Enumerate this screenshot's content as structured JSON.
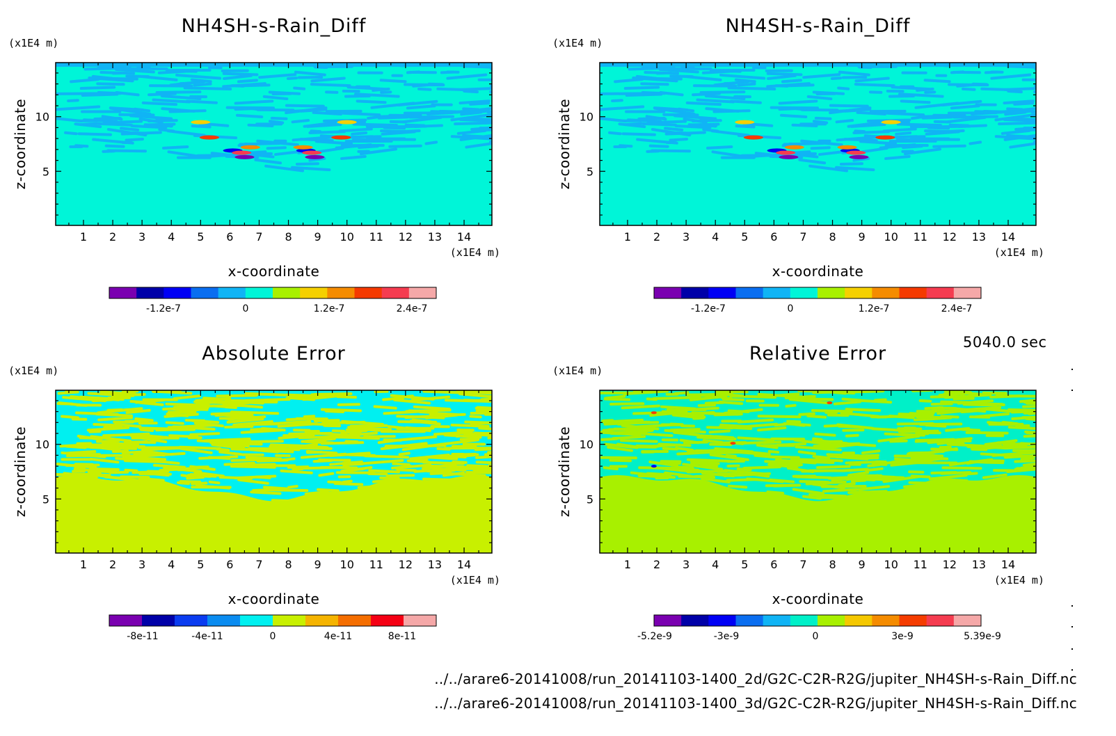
{
  "time_label": "5040.0 sec",
  "footer_lines": [
    "../../arare6-20141008/run_20141103-1400_2d/G2C-C2R-R2G/jupiter_NH4SH-s-Rain_Diff.nc",
    "../../arare6-20141008/run_20141103-1400_3d/G2C-C2R-R2G/jupiter_NH4SH-s-Rain_Diff.nc"
  ],
  "chart_data": [
    {
      "type": "heatmap",
      "title": "NH4SH-s-Rain_Diff",
      "xlabel": "x-coordinate",
      "ylabel": "z-coordinate",
      "x_unit": "(x1E4 m)",
      "y_unit": "(x1E4 m)",
      "xlim": [
        0.05,
        14.95
      ],
      "ylim": [
        0.05,
        14.95
      ],
      "x_ticks": [
        "1",
        "2",
        "3",
        "4",
        "5",
        "6",
        "7",
        "8",
        "9",
        "10",
        "11",
        "12",
        "13",
        "14"
      ],
      "y_ticks": [
        "5",
        "10"
      ],
      "colorbar": {
        "levels": 12,
        "tick_labels": [
          "-1.2e-7",
          "0",
          "1.2e-7",
          "2.4e-7"
        ],
        "colors": [
          "#7a00b0",
          "#0000a8",
          "#0000f5",
          "#0a6ef0",
          "#10b4f5",
          "#00f5d8",
          "#a8f000",
          "#f5d000",
          "#f58c00",
          "#f53a00",
          "#f53c50",
          "#f5a8a8"
        ]
      },
      "background_color": "#00f5d8",
      "pattern_color": "#10b4f5",
      "field": "difference pattern: rising thermal pair near x=7 and x=9, z 5-10"
    },
    {
      "type": "heatmap",
      "title": "NH4SH-s-Rain_Diff",
      "xlabel": "x-coordinate",
      "ylabel": "z-coordinate",
      "x_unit": "(x1E4 m)",
      "y_unit": "(x1E4 m)",
      "xlim": [
        0.05,
        14.95
      ],
      "ylim": [
        0.05,
        14.95
      ],
      "x_ticks": [
        "1",
        "2",
        "3",
        "4",
        "5",
        "6",
        "7",
        "8",
        "9",
        "10",
        "11",
        "12",
        "13",
        "14"
      ],
      "y_ticks": [
        "5",
        "10"
      ],
      "colorbar": {
        "levels": 12,
        "tick_labels": [
          "-1.2e-7",
          "0",
          "1.2e-7",
          "2.4e-7"
        ],
        "colors": [
          "#7a00b0",
          "#0000a8",
          "#0000f5",
          "#0a6ef0",
          "#10b4f5",
          "#00f5d8",
          "#a8f000",
          "#f5d000",
          "#f58c00",
          "#f53a00",
          "#f53c50",
          "#f5a8a8"
        ]
      },
      "background_color": "#00f5d8",
      "pattern_color": "#10b4f5"
    },
    {
      "type": "heatmap",
      "title": "Absolute Error",
      "xlabel": "x-coordinate",
      "ylabel": "z-coordinate",
      "x_unit": "(x1E4 m)",
      "y_unit": "(x1E4 m)",
      "xlim": [
        0.05,
        14.95
      ],
      "ylim": [
        0.05,
        14.95
      ],
      "x_ticks": [
        "1",
        "2",
        "3",
        "4",
        "5",
        "6",
        "7",
        "8",
        "9",
        "10",
        "11",
        "12",
        "13",
        "14"
      ],
      "y_ticks": [
        "5",
        "10"
      ],
      "colorbar": {
        "levels": 10,
        "tick_labels": [
          "-8e-11",
          "-4e-11",
          "0",
          "4e-11",
          "8e-11"
        ],
        "colors": [
          "#7a00b0",
          "#0000a8",
          "#0a3cf0",
          "#0a8cf0",
          "#00f0f0",
          "#c8f000",
          "#f5b400",
          "#f56e00",
          "#f50014",
          "#f5a8a8"
        ]
      },
      "background_color": "#c8f000",
      "pattern_color": "#00f0f0"
    },
    {
      "type": "heatmap",
      "title": "Relative Error",
      "xlabel": "x-coordinate",
      "ylabel": "z-coordinate",
      "x_unit": "(x1E4 m)",
      "y_unit": "(x1E4 m)",
      "xlim": [
        0.05,
        14.95
      ],
      "ylim": [
        0.05,
        14.95
      ],
      "x_ticks": [
        "1",
        "2",
        "3",
        "4",
        "5",
        "6",
        "7",
        "8",
        "9",
        "10",
        "11",
        "12",
        "13",
        "14"
      ],
      "y_ticks": [
        "5",
        "10"
      ],
      "colorbar": {
        "levels": 12,
        "tick_labels": [
          "-5.2e-9",
          "-3e-9",
          "0",
          "3e-9",
          "5.39e-9"
        ],
        "colors": [
          "#7a00b0",
          "#0000a8",
          "#0000f5",
          "#0a6ef0",
          "#10b4f5",
          "#00f0c8",
          "#a8f000",
          "#f5c800",
          "#f58c00",
          "#f53c00",
          "#f53c50",
          "#f5a8a8"
        ]
      },
      "background_color": "#a8f000",
      "pattern_color": "#00f0c8"
    }
  ]
}
